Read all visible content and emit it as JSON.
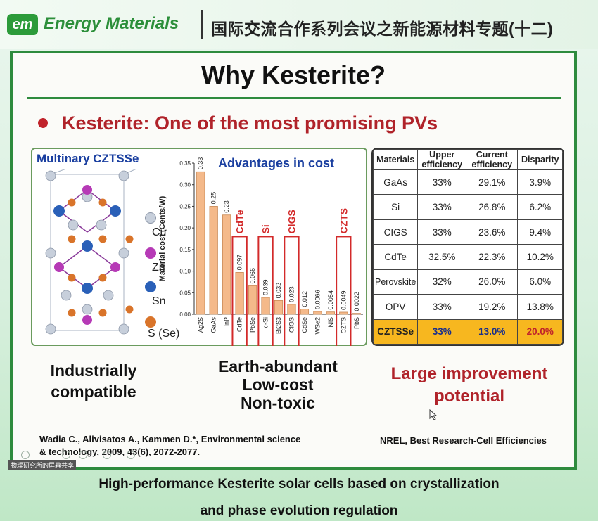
{
  "header": {
    "logo": "em",
    "brand": "Energy Materials",
    "series": "国际交流合作系列会议之新能源材料专题(十二)"
  },
  "slide": {
    "title": "Why Kesterite?",
    "bullet": "Kesterite: One of the most promising PVs",
    "panel_title": "Multinary CZTSSe",
    "chart_heading": "Advantages in cost",
    "legend": [
      "Cu",
      "Zn",
      "Sn",
      "S (Se)"
    ],
    "caption_left": [
      "Industrially",
      "compatible"
    ],
    "caption_mid": [
      "Earth-abundant",
      "Low-cost",
      "Non-toxic"
    ],
    "caption_right": [
      "Large improvement",
      "potential"
    ],
    "ref_left": [
      "Wadia C., Alivisatos A., Kammen D.*, Environmental science",
      "& technology, 2009, 43(6), 2072-2077."
    ],
    "ref_right": "NREL, Best Research-Cell Efficiencies"
  },
  "chart_data": {
    "type": "bar",
    "ylabel": "Material cost (Cents/W)",
    "ylim": [
      0,
      0.35
    ],
    "yticks": [
      "0.00",
      "0.05",
      "0.10",
      "0.15",
      "0.20",
      "0.25",
      "0.30",
      "0.35"
    ],
    "categories": [
      "Ag2S",
      "GaAs",
      "InP",
      "CdTe",
      "PbSe",
      "c-Si",
      "Bi2S3",
      "CIGS",
      "CdSe",
      "WSe2",
      "NiS",
      "CZTS",
      "PbS"
    ],
    "values": [
      0.33,
      0.25,
      0.23,
      0.097,
      0.066,
      0.039,
      0.032,
      0.023,
      0.012,
      0.0066,
      0.0054,
      0.0049,
      0.0022
    ],
    "value_labels": [
      "0.33",
      "0.25",
      "0.23",
      "0.097",
      "0.066",
      "0.039",
      "0.032",
      "0.023",
      "0.012",
      "0.0066",
      "0.0054",
      "0.0049",
      "0.0022"
    ],
    "highlighted": [
      "CdTe",
      "Si",
      "CIGS",
      "CZTS"
    ],
    "colors": {
      "bar": "#f4b98a",
      "bar_edge": "#c98a56",
      "highlight": "#d32a2a"
    }
  },
  "table": {
    "headers": [
      "Materials",
      "Upper efficiency",
      "Current efficiency",
      "Disparity"
    ],
    "rows": [
      [
        "GaAs",
        "33%",
        "29.1%",
        "3.9%"
      ],
      [
        "Si",
        "33%",
        "26.8%",
        "6.2%"
      ],
      [
        "CIGS",
        "33%",
        "23.6%",
        "9.4%"
      ],
      [
        "CdTe",
        "32.5%",
        "22.3%",
        "10.2%"
      ],
      [
        "Perovskite",
        "32%",
        "26.0%",
        "6.0%"
      ],
      [
        "OPV",
        "33%",
        "19.2%",
        "13.8%"
      ],
      [
        "CZTSSe",
        "33%",
        "13.0%",
        "20.0%"
      ]
    ]
  },
  "overlay": {
    "screen_share_tag": "物理研究所的屏幕共享"
  },
  "footer": {
    "line1": "High-performance Kesterite solar cells based on crystallization",
    "line2": "and phase evolution regulation"
  }
}
